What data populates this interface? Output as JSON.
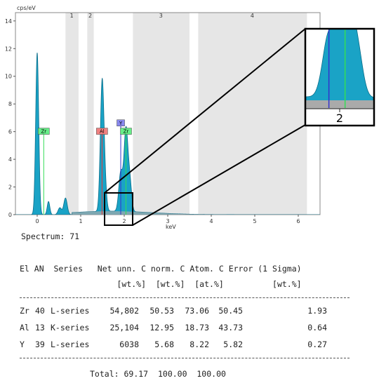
{
  "chart_data": {
    "type": "line",
    "ylabel": "cps/eV",
    "xlabel": "keV",
    "xlim": [
      -0.5,
      6.5
    ],
    "ylim": [
      0,
      14.6
    ],
    "x_ticks": [
      0,
      1,
      2,
      3,
      4,
      5,
      6
    ],
    "y_ticks": [
      0,
      2,
      4,
      6,
      8,
      10,
      12,
      14
    ],
    "regions": [
      {
        "label": "1",
        "x0": 0.65,
        "x1": 0.95,
        "shaded": true
      },
      {
        "label": "2",
        "x0": 1.15,
        "x1": 1.3,
        "shaded": true
      },
      {
        "label": "3",
        "x0": 2.2,
        "x1": 3.5,
        "shaded": true
      },
      {
        "label": "4",
        "x0": 3.7,
        "x1": 6.2,
        "shaded": true
      }
    ],
    "peaks": [
      {
        "x": 0.0,
        "y": 11.7,
        "w": 0.035
      },
      {
        "x": 0.26,
        "y": 0.95,
        "w": 0.03
      },
      {
        "x": 0.52,
        "y": 0.5,
        "w": 0.04
      },
      {
        "x": 0.65,
        "y": 1.2,
        "w": 0.04
      },
      {
        "x": 1.49,
        "y": 8.9,
        "w": 0.04
      },
      {
        "x": 1.55,
        "y": 2.0,
        "w": 0.04
      },
      {
        "x": 1.92,
        "y": 2.8,
        "w": 0.045
      },
      {
        "x": 2.04,
        "y": 5.9,
        "w": 0.045
      },
      {
        "x": 2.13,
        "y": 2.1,
        "w": 0.04
      }
    ],
    "background_level": 0.25,
    "markers": [
      {
        "label": "Zr",
        "x": 0.15,
        "y": 5.8,
        "color": "#33dd55",
        "tag_color": "#66ee88"
      },
      {
        "label": "Al",
        "x": 1.49,
        "y": 5.8,
        "color": "#ee3333",
        "tag_color": "#f08080"
      },
      {
        "label": "Y",
        "x": 1.92,
        "y": 6.4,
        "color": "#3333cc",
        "tag_color": "#8888ee"
      },
      {
        "label": "Zr",
        "x": 2.04,
        "y": 5.8,
        "color": "#33dd55",
        "tag_color": "#66ee88"
      }
    ],
    "inset": {
      "center_label": "2",
      "x_range": [
        1.75,
        2.25
      ]
    }
  },
  "report": {
    "spectrum_label": "Spectrum:",
    "spectrum_value": "71",
    "header1": "El AN  Series   Net unn. C norm. C Atom. C Error (1 Sigma)",
    "header2": "                    [wt.%]  [wt.%]  [at.%]          [wt.%]",
    "rows": [
      {
        "el": "Zr",
        "an": "40",
        "series": "L-series",
        "net": "54,802",
        "unn": "50.53",
        "norm": "73.06",
        "atom": "50.45",
        "err": "1.93"
      },
      {
        "el": "Al",
        "an": "13",
        "series": "K-series",
        "net": "25,104",
        "unn": "12.95",
        "norm": "18.73",
        "atom": "43.73",
        "err": "0.64"
      },
      {
        "el": "Y",
        "an": "39",
        "series": "L-series",
        "net": "6038",
        "unn": "5.68",
        "norm": "8.22",
        "atom": "5.82",
        "err": "0.27"
      }
    ],
    "total_label": "Total:",
    "total_unn": "69.17",
    "total_norm": "100.00",
    "total_atom": "100.00"
  },
  "colors": {
    "spectrum_fill": "#1aa3c6",
    "spectrum_dark": "#0b6e8a",
    "background_fill": "#aaaaaa",
    "region_fill": "#e6e6e6"
  }
}
